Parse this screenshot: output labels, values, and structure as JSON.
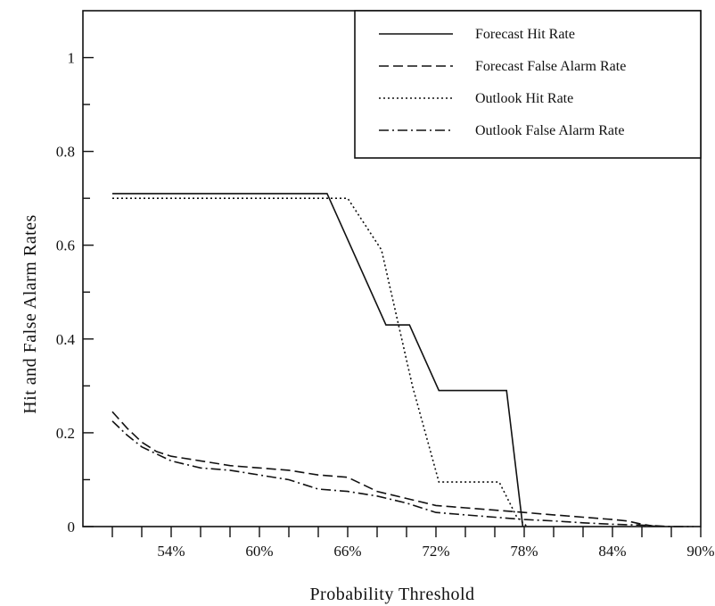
{
  "chart_data": {
    "type": "line",
    "title": "",
    "xlabel": "Probability Threshold",
    "ylabel": "Hit and False Alarm Rates",
    "xlim": [
      48,
      90
    ],
    "ylim": [
      0,
      1.1
    ],
    "x_ticks": [
      {
        "value": 54,
        "label": "54%"
      },
      {
        "value": 60,
        "label": "60%"
      },
      {
        "value": 66,
        "label": "66%"
      },
      {
        "value": 72,
        "label": "72%"
      },
      {
        "value": 78,
        "label": "78%"
      },
      {
        "value": 84,
        "label": "84%"
      },
      {
        "value": 90,
        "label": "90%"
      }
    ],
    "y_ticks": [
      {
        "value": 0,
        "label": "0"
      },
      {
        "value": 0.2,
        "label": "0.2"
      },
      {
        "value": 0.4,
        "label": "0.4"
      },
      {
        "value": 0.6,
        "label": "0.6"
      },
      {
        "value": 0.8,
        "label": "0.8"
      },
      {
        "value": 1,
        "label": "1"
      }
    ],
    "grid": false,
    "legend_position": "top-right",
    "series": [
      {
        "name": "Forecast Hit Rate",
        "style": "solid",
        "points": [
          [
            50,
            0.71
          ],
          [
            64.6,
            0.71
          ],
          [
            68.6,
            0.43
          ],
          [
            70.2,
            0.43
          ],
          [
            72.2,
            0.29
          ],
          [
            76.8,
            0.29
          ],
          [
            77.9,
            0.0
          ]
        ]
      },
      {
        "name": "Forecast False Alarm Rate",
        "style": "dashed",
        "points": [
          [
            50,
            0.245
          ],
          [
            51,
            0.21
          ],
          [
            52,
            0.18
          ],
          [
            53,
            0.16
          ],
          [
            54,
            0.15
          ],
          [
            56,
            0.14
          ],
          [
            58,
            0.13
          ],
          [
            60,
            0.125
          ],
          [
            62,
            0.12
          ],
          [
            64,
            0.11
          ],
          [
            66,
            0.105
          ],
          [
            67,
            0.09
          ],
          [
            68,
            0.075
          ],
          [
            70,
            0.06
          ],
          [
            72,
            0.045
          ],
          [
            74,
            0.04
          ],
          [
            76,
            0.035
          ],
          [
            78,
            0.03
          ],
          [
            80,
            0.025
          ],
          [
            82,
            0.02
          ],
          [
            84,
            0.015
          ],
          [
            85,
            0.012
          ],
          [
            86,
            0.005
          ],
          [
            87,
            0.0
          ]
        ]
      },
      {
        "name": "Outlook Hit Rate",
        "style": "dotted",
        "points": [
          [
            50,
            0.7
          ],
          [
            66,
            0.7
          ],
          [
            68.3,
            0.59
          ],
          [
            70.4,
            0.3
          ],
          [
            72.2,
            0.095
          ],
          [
            76.3,
            0.095
          ],
          [
            77.5,
            0.02
          ],
          [
            78.2,
            0.0
          ]
        ]
      },
      {
        "name": "Outlook False Alarm Rate",
        "style": "dash-dot",
        "points": [
          [
            50,
            0.225
          ],
          [
            51,
            0.195
          ],
          [
            52,
            0.17
          ],
          [
            53,
            0.155
          ],
          [
            54,
            0.14
          ],
          [
            56,
            0.125
          ],
          [
            58,
            0.12
          ],
          [
            60,
            0.11
          ],
          [
            62,
            0.1
          ],
          [
            64,
            0.08
          ],
          [
            66,
            0.075
          ],
          [
            68,
            0.065
          ],
          [
            70,
            0.05
          ],
          [
            72,
            0.03
          ],
          [
            74,
            0.025
          ],
          [
            76,
            0.02
          ],
          [
            78,
            0.015
          ],
          [
            80,
            0.012
          ],
          [
            82,
            0.008
          ],
          [
            84,
            0.005
          ],
          [
            86,
            0.003
          ],
          [
            88,
            0.0
          ],
          [
            89.5,
            0.0
          ]
        ]
      }
    ]
  }
}
